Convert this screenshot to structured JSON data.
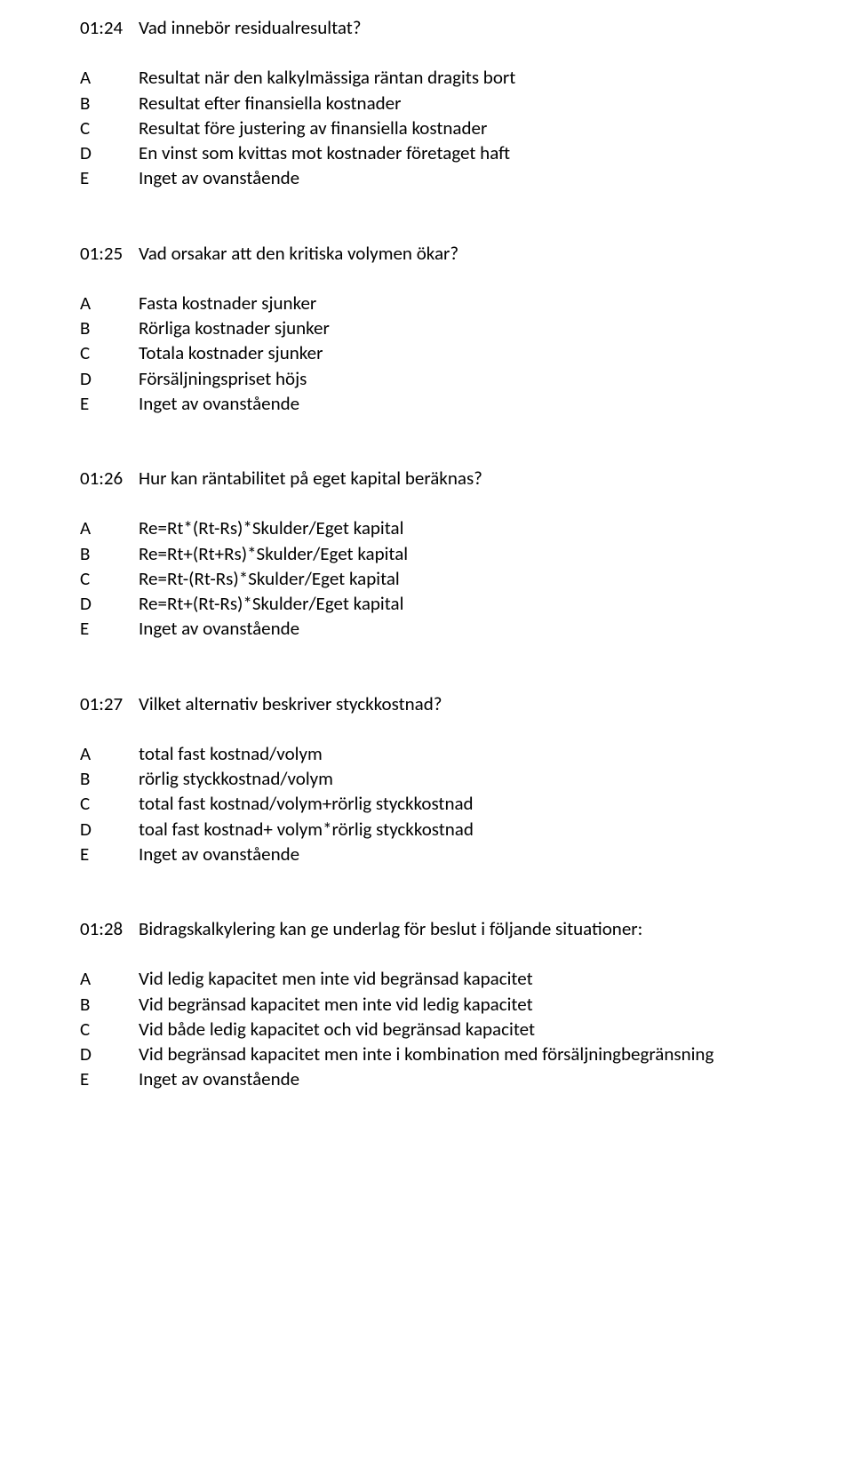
{
  "questions": [
    {
      "number": "01:24",
      "text": "Vad innebör residualresultat?",
      "options": [
        {
          "letter": "A",
          "text": "Resultat när den kalkylmässiga räntan dragits bort"
        },
        {
          "letter": "B",
          "text": "Resultat efter finansiella kostnader"
        },
        {
          "letter": "C",
          "text": "Resultat före justering av finansiella kostnader"
        },
        {
          "letter": "D",
          "text": "En vinst som kvittas mot kostnader företaget haft"
        },
        {
          "letter": "E",
          "text": "Inget av ovanstående"
        }
      ]
    },
    {
      "number": "01:25",
      "text": "Vad orsakar att den kritiska volymen ökar?",
      "options": [
        {
          "letter": "A",
          "text": "Fasta kostnader sjunker"
        },
        {
          "letter": "B",
          "text": "Rörliga kostnader sjunker"
        },
        {
          "letter": "C",
          "text": "Totala kostnader sjunker"
        },
        {
          "letter": "D",
          "text": "Försäljningspriset höjs"
        },
        {
          "letter": "E",
          "text": "Inget av ovanstående"
        }
      ]
    },
    {
      "number": "01:26",
      "text": "Hur kan räntabilitet på eget kapital beräknas?",
      "options": [
        {
          "letter": "A",
          "text": "Re=Rt*(Rt-Rs)*Skulder/Eget kapital"
        },
        {
          "letter": "B",
          "text": "Re=Rt+(Rt+Rs)*Skulder/Eget kapital"
        },
        {
          "letter": "C",
          "text": "Re=Rt-(Rt-Rs)*Skulder/Eget kapital"
        },
        {
          "letter": "D",
          "text": "Re=Rt+(Rt-Rs)*Skulder/Eget kapital"
        },
        {
          "letter": "E",
          "text": "Inget av ovanstående"
        }
      ]
    },
    {
      "number": "01:27",
      "text": "Vilket alternativ beskriver styckkostnad?",
      "options": [
        {
          "letter": "A",
          "text": "total fast kostnad/volym"
        },
        {
          "letter": "B",
          "text": "rörlig styckkostnad/volym"
        },
        {
          "letter": "C",
          "text": "total fast kostnad/volym+rörlig styckkostnad"
        },
        {
          "letter": "D",
          "text": "toal fast kostnad+ volym*rörlig styckkostnad"
        },
        {
          "letter": "E",
          "text": "Inget av ovanstående"
        }
      ]
    },
    {
      "number": "01:28",
      "text": "Bidragskalkylering kan ge underlag för beslut i följande situationer:",
      "options": [
        {
          "letter": "A",
          "text": "Vid ledig kapacitet men inte vid begränsad kapacitet"
        },
        {
          "letter": "B",
          "text": "Vid begränsad kapacitet men inte vid ledig kapacitet"
        },
        {
          "letter": "C",
          "text": "Vid både ledig kapacitet och vid begränsad kapacitet"
        },
        {
          "letter": "D",
          "text": "Vid begränsad kapacitet men inte i kombination med försäljningbegränsning"
        },
        {
          "letter": "E",
          "text": "Inget av ovanstående"
        }
      ]
    }
  ]
}
